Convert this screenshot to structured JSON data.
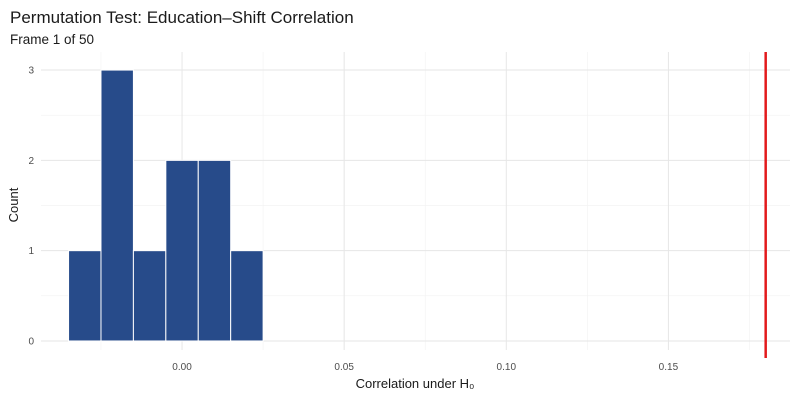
{
  "chart_data": {
    "type": "bar",
    "title": "Permutation Test: Education–Shift Correlation",
    "subtitle": "Frame 1 of 50",
    "xlabel": "Correlation under H₀",
    "ylabel": "Count",
    "bin_width": 0.01,
    "bins": [
      {
        "x0": -0.035,
        "x1": -0.025,
        "count": 1
      },
      {
        "x0": -0.025,
        "x1": -0.015,
        "count": 3
      },
      {
        "x0": -0.015,
        "x1": -0.005,
        "count": 1
      },
      {
        "x0": -0.005,
        "x1": 0.005,
        "count": 2
      },
      {
        "x0": 0.005,
        "x1": 0.015,
        "count": 2
      },
      {
        "x0": 0.015,
        "x1": 0.025,
        "count": 1
      }
    ],
    "observed_line": {
      "x": 0.18,
      "color": "#e31a1c"
    },
    "xlim": [
      -0.0435,
      0.1875
    ],
    "ylim": [
      -0.1,
      3.2
    ],
    "x_ticks": [
      {
        "value": 0.0,
        "label": "0.00"
      },
      {
        "value": 0.05,
        "label": "0.05"
      },
      {
        "value": 0.1,
        "label": "0.10"
      },
      {
        "value": 0.15,
        "label": "0.15"
      }
    ],
    "y_ticks": [
      {
        "value": 0,
        "label": "0"
      },
      {
        "value": 1,
        "label": "1"
      },
      {
        "value": 2,
        "label": "2"
      },
      {
        "value": 3,
        "label": "3"
      }
    ],
    "bar_fill": "#274b8a",
    "bar_outline": "#ffffff",
    "grid": true,
    "legend": "none"
  }
}
